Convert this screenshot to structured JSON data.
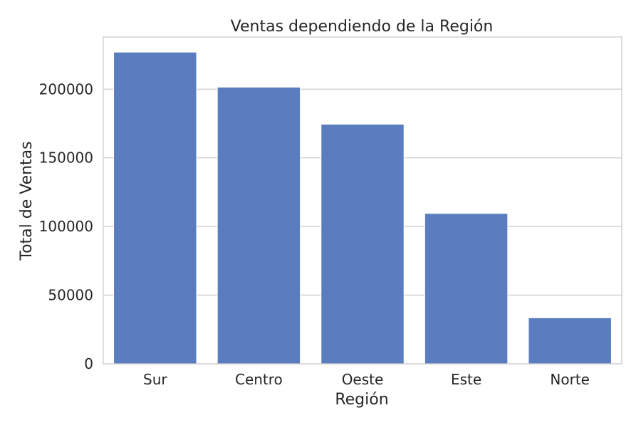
{
  "chart_data": {
    "type": "bar",
    "title": "Ventas dependiendo de la Región",
    "xlabel": "Región",
    "ylabel": "Total de Ventas",
    "categories": [
      "Sur",
      "Centro",
      "Oeste",
      "Este",
      "Norte"
    ],
    "values": [
      227000,
      201500,
      174500,
      109500,
      33500
    ],
    "ylim": [
      0,
      238000
    ],
    "yticks": [
      0,
      50000,
      100000,
      150000,
      200000
    ],
    "ytick_labels": [
      "0",
      "50000",
      "100000",
      "150000",
      "200000"
    ],
    "grid": "horizontal",
    "bar_color": "#5A7DC0"
  }
}
